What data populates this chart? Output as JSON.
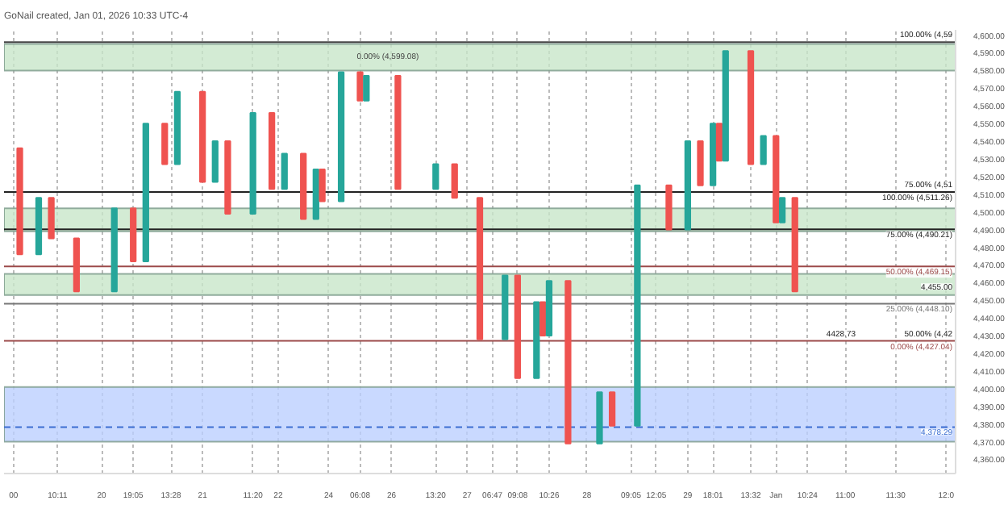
{
  "chart_data": {
    "type": "candlestick",
    "title": "GoNail created, Jan 01, 2026 10:33 UTC-4",
    "categories": [
      null,
      "00",
      null,
      null,
      null,
      null,
      null,
      null,
      "10:11",
      null,
      null,
      null,
      null,
      null,
      null,
      "20",
      null,
      null,
      null,
      null,
      "19:05",
      null,
      null,
      null,
      null,
      null,
      "13:28",
      null,
      null,
      null,
      null,
      "21",
      null,
      null,
      null,
      null,
      null,
      null,
      null,
      "11:20",
      null,
      null,
      null,
      "22",
      null,
      null,
      null,
      null,
      null,
      null,
      null,
      "24",
      null,
      null,
      null,
      null,
      "06:08",
      null,
      null,
      null,
      null,
      "26",
      null,
      null,
      null,
      null,
      null,
      null,
      "13:20",
      null,
      null,
      null,
      null,
      "27",
      null,
      null,
      null,
      "06:47",
      null,
      null,
      null,
      "09:08",
      null,
      null,
      null,
      null,
      "10:26",
      null,
      null,
      null,
      null,
      null,
      "28",
      null,
      null,
      null,
      null,
      null,
      null,
      "09:05",
      null,
      null,
      null,
      "12:05",
      null,
      null,
      null,
      null,
      "29",
      null,
      null,
      null,
      "18:01",
      null,
      null,
      null,
      null,
      null,
      "13:32",
      null,
      null,
      null,
      "Jan",
      null,
      null,
      null,
      null,
      "10:24",
      null,
      null,
      null,
      null,
      null,
      "11:00",
      null,
      null,
      null,
      null,
      null,
      null,
      null,
      "11:30",
      null,
      null,
      null,
      null,
      null,
      null,
      null,
      "12:0",
      null
    ],
    "ohlc": [
      null,
      null,
      [
        4536,
        4536,
        4476,
        4476
      ],
      null,
      null,
      [
        4476,
        4508,
        4476,
        4508
      ],
      null,
      [
        4508,
        4508,
        4485,
        4485
      ],
      null,
      null,
      null,
      [
        4485,
        4485,
        4455,
        4455
      ],
      null,
      null,
      null,
      null,
      null,
      [
        4455,
        4502,
        4455,
        4502
      ],
      null,
      null,
      [
        4502,
        4502,
        4472,
        4472
      ],
      null,
      [
        4472,
        4550,
        4472,
        4550
      ],
      null,
      null,
      [
        4550,
        4550,
        4527,
        4527
      ],
      null,
      [
        4527,
        4568,
        4527,
        4568
      ],
      null,
      null,
      null,
      [
        4568,
        4568,
        4517,
        4517
      ],
      null,
      [
        4517,
        4540,
        4517,
        4540
      ],
      null,
      [
        4540,
        4540,
        4499,
        4499
      ],
      null,
      null,
      null,
      [
        4499,
        4556,
        4499,
        4556
      ],
      null,
      null,
      [
        4556,
        4556,
        4513,
        4513
      ],
      null,
      [
        4513,
        4533,
        4513,
        4533
      ],
      null,
      null,
      [
        4533,
        4533,
        4496,
        4496
      ],
      null,
      [
        4496,
        4524,
        4496,
        4524
      ],
      [
        4524,
        4524,
        4506,
        4506
      ],
      null,
      null,
      [
        4506,
        4579,
        4506,
        4579
      ],
      null,
      null,
      [
        4579,
        4579,
        4563,
        4563
      ],
      [
        4563,
        4577,
        4563,
        4577
      ],
      null,
      null,
      null,
      null,
      [
        4577,
        4577,
        4513,
        4513
      ],
      null,
      null,
      null,
      null,
      null,
      [
        4513,
        4527,
        4513,
        4527
      ],
      null,
      null,
      [
        4527,
        4527,
        4508,
        4508
      ],
      null,
      null,
      null,
      [
        4508,
        4508,
        4428,
        4428
      ],
      null,
      null,
      null,
      [
        4428,
        4464,
        4428,
        4464
      ],
      null,
      [
        4464,
        4464,
        4406,
        4406
      ],
      null,
      null,
      [
        4406,
        4449,
        4406,
        4449
      ],
      [
        4449,
        4449,
        4430,
        4430
      ],
      [
        4430,
        4461,
        4430,
        4461
      ],
      null,
      null,
      [
        4461,
        4461,
        4369,
        4369
      ],
      null,
      null,
      null,
      null,
      [
        4369,
        4398,
        4369,
        4398
      ],
      null,
      [
        4398,
        4398,
        4379,
        4379
      ],
      null,
      null,
      null,
      [
        4379,
        4515,
        4379,
        4515
      ],
      null,
      null,
      null,
      null,
      [
        4515,
        4515,
        4490,
        4490
      ],
      null,
      null,
      [
        4490,
        4540,
        4490,
        4540
      ],
      null,
      [
        4540,
        4540,
        4515,
        4515
      ],
      null,
      [
        4515,
        4550,
        4515,
        4550
      ],
      [
        4550,
        4550,
        4529,
        4529
      ],
      [
        4529,
        4591,
        4529,
        4591
      ],
      null,
      null,
      null,
      [
        4591,
        4591,
        4527,
        4527
      ],
      null,
      [
        4527,
        4543,
        4527,
        4543
      ],
      null,
      [
        4543,
        4543,
        4494,
        4494
      ],
      [
        4494,
        4508,
        4494,
        4508
      ],
      null,
      [
        4508,
        4508,
        4455,
        4455
      ],
      null,
      null,
      null,
      null,
      null,
      null,
      null,
      null,
      null,
      null,
      null,
      null,
      null,
      null,
      null,
      null,
      null,
      null,
      null,
      null,
      null,
      null,
      null,
      null,
      null
    ],
    "ylim": [
      4352,
      4603
    ],
    "yticks": [
      {
        "value": 4360,
        "label": "4,360.00"
      },
      {
        "value": 4370,
        "label": "4,370.00"
      },
      {
        "value": 4380,
        "label": "4,380.00"
      },
      {
        "value": 4390,
        "label": "4,390.00"
      },
      {
        "value": 4400,
        "label": "4,400.00"
      },
      {
        "value": 4410,
        "label": "4,410.00"
      },
      {
        "value": 4420,
        "label": "4,420.00"
      },
      {
        "value": 4430,
        "label": "4,430.00"
      },
      {
        "value": 4440,
        "label": "4,440.00"
      },
      {
        "value": 4450,
        "label": "4,450.00"
      },
      {
        "value": 4460,
        "label": "4,460.00"
      },
      {
        "value": 4470,
        "label": "4,470.00"
      },
      {
        "value": 4480,
        "label": "4,480.00"
      },
      {
        "value": 4490,
        "label": "4,490.00"
      },
      {
        "value": 4500,
        "label": "4,500.00"
      },
      {
        "value": 4510,
        "label": "4,510.00"
      },
      {
        "value": 4520,
        "label": "4,520.00"
      },
      {
        "value": 4530,
        "label": "4,530.00"
      },
      {
        "value": 4540,
        "label": "4,540.00"
      },
      {
        "value": 4550,
        "label": "4,550.00"
      },
      {
        "value": 4560,
        "label": "4,560.00"
      },
      {
        "value": 4570,
        "label": "4,570.00"
      },
      {
        "value": 4580,
        "label": "4,580.00"
      },
      {
        "value": 4590,
        "label": "4,590.00"
      },
      {
        "value": 4600,
        "label": "4,600.00"
      }
    ],
    "grid": "x",
    "bands": [
      {
        "axis": "y",
        "from": 4580,
        "to": 4595,
        "label": "0.00% (4,599.08)",
        "color": "#c8e6c9"
      },
      {
        "axis": "y",
        "from": 4489,
        "to": 4502,
        "label": null,
        "color": "#c8e6c9"
      },
      {
        "axis": "y",
        "from": 4453,
        "to": 4465,
        "label": null,
        "color": "#c8e6c9"
      },
      {
        "axis": "y",
        "from": 4370,
        "to": 4401,
        "label": null,
        "color": "#bbcfff"
      }
    ],
    "ref_lines": [
      {
        "axis": "y",
        "value": 4596,
        "label": null,
        "color": "#444444"
      },
      {
        "axis": "y",
        "value": 4511.26,
        "label": "100.00% (4,511.26)",
        "color": "#222222"
      },
      {
        "axis": "y",
        "value": 4490.21,
        "label": "75.00% (4,490.21)",
        "color": "#222222"
      },
      {
        "axis": "y",
        "value": 4469.15,
        "label": "50.00% (4,469.15)",
        "color": "#9c4a4a"
      },
      {
        "axis": "y",
        "value": 4448.1,
        "label": "25.00% (4,448.10)",
        "color": "#777777"
      },
      {
        "axis": "y",
        "value": 4427.04,
        "label": "0.00% (4,427.04)",
        "color": "#9c4a4a"
      },
      {
        "axis": "y",
        "value": 4378.29,
        "label": "4,378.29",
        "color": "#3d6fd1",
        "line_style": "dashed"
      }
    ],
    "annotations": [
      {
        "text": "100.00% (4,59",
        "y": 4596
      },
      {
        "text": "75.00% (4,51",
        "y": 4511.26
      },
      {
        "text": "50.00% (4,42",
        "y": 4427.04
      },
      {
        "text": "4428.73",
        "y": 4428.73
      },
      {
        "text": "4,455.00",
        "y": 4455
      }
    ]
  }
}
